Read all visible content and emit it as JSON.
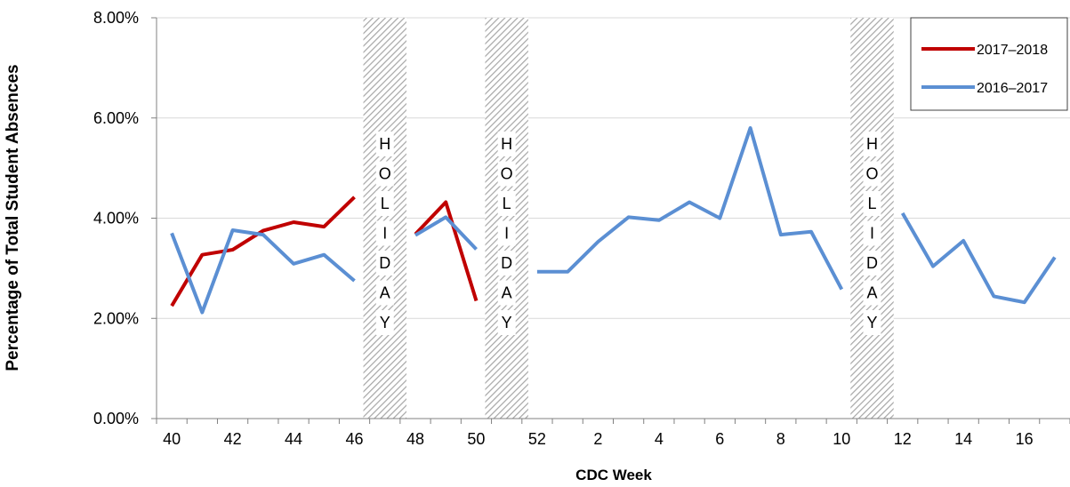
{
  "chart_data": {
    "type": "line",
    "xlabel": "CDC Week",
    "ylabel": "Percentage of Total Student Absences",
    "ylim": [
      0,
      8
    ],
    "y_ticks": [
      "0.00%",
      "2.00%",
      "4.00%",
      "6.00%",
      "8.00%"
    ],
    "x_tick_labels": [
      "40",
      "42",
      "44",
      "46",
      "48",
      "50",
      "52",
      "2",
      "4",
      "6",
      "8",
      "10",
      "12",
      "14",
      "16"
    ],
    "categories": [
      "40",
      "41",
      "42",
      "43",
      "44",
      "45",
      "46",
      "47",
      "48",
      "49",
      "50",
      "51",
      "52",
      "1",
      "2",
      "3",
      "4",
      "5",
      "6",
      "7",
      "8",
      "9",
      "10",
      "11",
      "12",
      "13",
      "14",
      "15",
      "16",
      "17"
    ],
    "holiday_label": "HOLIDAY",
    "holidays": [
      {
        "from": "46",
        "to": "48"
      },
      {
        "from": "50",
        "to": "52"
      },
      {
        "from": "10",
        "to": "12"
      }
    ],
    "grid": true,
    "legend_position": "top-right",
    "series": [
      {
        "name": "2017–2018",
        "color": "#c00000",
        "values": [
          2.25,
          3.27,
          3.37,
          3.75,
          3.92,
          3.83,
          4.42,
          null,
          3.68,
          4.32,
          2.35,
          null,
          null,
          null,
          null,
          null,
          null,
          null,
          null,
          null,
          null,
          null,
          null,
          null,
          null,
          null,
          null,
          null,
          null,
          null
        ]
      },
      {
        "name": "2016–2017",
        "color": "#5b8fd3",
        "values": [
          3.7,
          2.12,
          3.76,
          3.67,
          3.09,
          3.27,
          2.75,
          null,
          3.66,
          4.02,
          3.38,
          null,
          2.93,
          2.93,
          3.53,
          4.02,
          3.96,
          4.32,
          4.0,
          5.8,
          3.67,
          3.73,
          2.58,
          null,
          4.1,
          3.04,
          3.55,
          2.44,
          2.32,
          3.22
        ]
      }
    ]
  }
}
